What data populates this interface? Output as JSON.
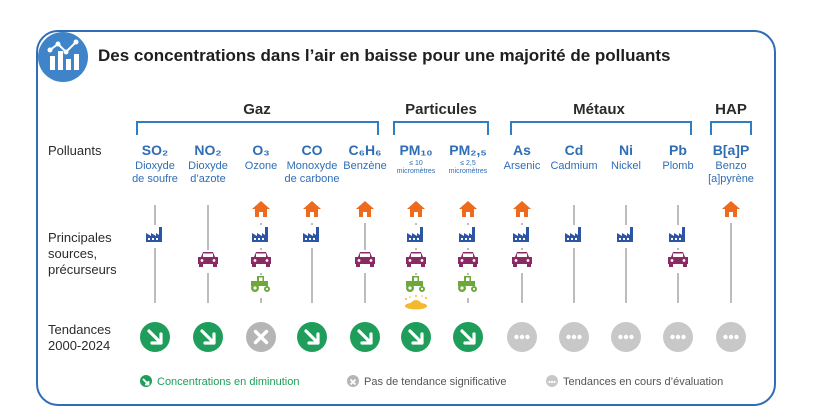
{
  "title": "Des concentrations dans l’air en baisse pour une majorité de polluants",
  "groups": [
    "Gaz",
    "Particules",
    "Métaux",
    "HAP"
  ],
  "row_labels": {
    "polluants": "Polluants",
    "sources": [
      "Principales",
      "sources,",
      "précurseurs"
    ],
    "tendances": [
      "Tendances",
      "2000-2024"
    ]
  },
  "pollutants": [
    {
      "code": "SO₂",
      "name": [
        "Dioxyde",
        "de soufre"
      ],
      "sources": [
        "industry"
      ],
      "trend": "down"
    },
    {
      "code": "NO₂",
      "name": [
        "Dioxyde",
        "d’azote"
      ],
      "sources": [
        "car"
      ],
      "trend": "down"
    },
    {
      "code": "O₃",
      "name": [
        "Ozone"
      ],
      "sources": [
        "house",
        "industry",
        "car",
        "tractor"
      ],
      "trend": "none"
    },
    {
      "code": "CO",
      "name": [
        "Monoxyde",
        "de carbone"
      ],
      "sources": [
        "house",
        "industry"
      ],
      "trend": "down"
    },
    {
      "code": "C₆H₆",
      "name": [
        "Benzène"
      ],
      "sources": [
        "house",
        "car"
      ],
      "trend": "down"
    },
    {
      "code": "PM₁₀",
      "sub": [
        "≤ 10",
        "micromètres"
      ],
      "sources": [
        "house",
        "industry",
        "car",
        "tractor",
        "dust"
      ],
      "trend": "down"
    },
    {
      "code": "PM₂,₅",
      "sub": [
        "≤ 2,5",
        "micromètres"
      ],
      "sources": [
        "house",
        "industry",
        "car",
        "tractor"
      ],
      "trend": "down"
    },
    {
      "code": "As",
      "name": [
        "Arsenic"
      ],
      "sources": [
        "house",
        "industry",
        "car"
      ],
      "trend": "eval"
    },
    {
      "code": "Cd",
      "name": [
        "Cadmium"
      ],
      "sources": [
        "industry"
      ],
      "trend": "eval"
    },
    {
      "code": "Ni",
      "name": [
        "Nickel"
      ],
      "sources": [
        "industry"
      ],
      "trend": "eval"
    },
    {
      "code": "Pb",
      "name": [
        "Plomb"
      ],
      "sources": [
        "industry",
        "car"
      ],
      "trend": "eval"
    },
    {
      "code": "B[a]P",
      "name": [
        "Benzo",
        "[a]pyrène"
      ],
      "sources": [
        "house"
      ],
      "trend": "eval"
    }
  ],
  "legend": {
    "down": "Concentrations en diminution",
    "none": "Pas de tendance significative",
    "eval": "Tendances en cours d’évaluation"
  },
  "colors": {
    "frame": "#2f6db5",
    "bracket": "#2f7ec1",
    "code": "#2f6db5",
    "down": "#1e9e5a",
    "none": "#b5b5b5",
    "eval": "#c8c8c8",
    "house": "#ee6a1c",
    "industry": "#2d55a6",
    "car": "#8a2a62",
    "tractor": "#6ea83a",
    "dust": "#f2b92e"
  }
}
